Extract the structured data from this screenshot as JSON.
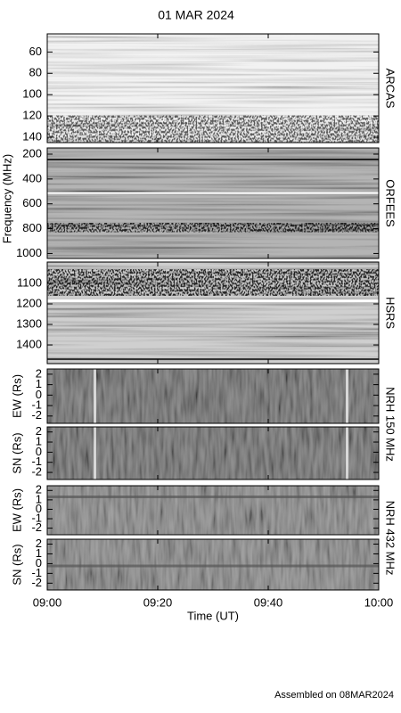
{
  "title": "01 MAR 2024",
  "footer": "Assembled on 08MAR2024",
  "chart_data": {
    "type": "spectrogram-stack",
    "ylabel": "Frequency (MHz)",
    "xlabel": "Time (UT)",
    "xlim": [
      0,
      60
    ],
    "xticks": [
      {
        "value": 0,
        "label": "09:00"
      },
      {
        "value": 20,
        "label": "09:20"
      },
      {
        "value": 40,
        "label": "09:40"
      },
      {
        "value": 60,
        "label": "10:00"
      }
    ],
    "panels": [
      {
        "side_label": "ARCAS",
        "ylim": [
          43,
          145
        ],
        "yticks": [
          60,
          80,
          100,
          120,
          140
        ]
      },
      {
        "side_label": "ORFEES",
        "ylim": [
          150,
          1040
        ],
        "yticks": [
          200,
          400,
          600,
          800,
          1000
        ]
      },
      {
        "side_label": "HSRS",
        "ylim": [
          996,
          1491
        ],
        "yticks": [
          1100,
          1200,
          1300,
          1400
        ]
      },
      {
        "side_label": "NRH 150 MHz",
        "ylabel": "EW (Rs)",
        "ylim": [
          2.5,
          -2.7
        ],
        "yticks": [
          2,
          1,
          0,
          -1,
          -2
        ]
      },
      {
        "ylabel": "SN (Rs)",
        "ylim": [
          2.5,
          -2.7
        ],
        "yticks": [
          2,
          1,
          0,
          -1,
          -2
        ]
      },
      {
        "side_label": "NRH 432 MHz",
        "ylabel": "EW (Rs)",
        "ylim": [
          2.5,
          -2.7
        ],
        "yticks": [
          2,
          1,
          0,
          -1,
          -2
        ]
      },
      {
        "ylabel": "SN (Rs)",
        "ylim": [
          2.5,
          -2.7
        ],
        "yticks": [
          2,
          1,
          0,
          -1,
          -2
        ]
      }
    ]
  }
}
